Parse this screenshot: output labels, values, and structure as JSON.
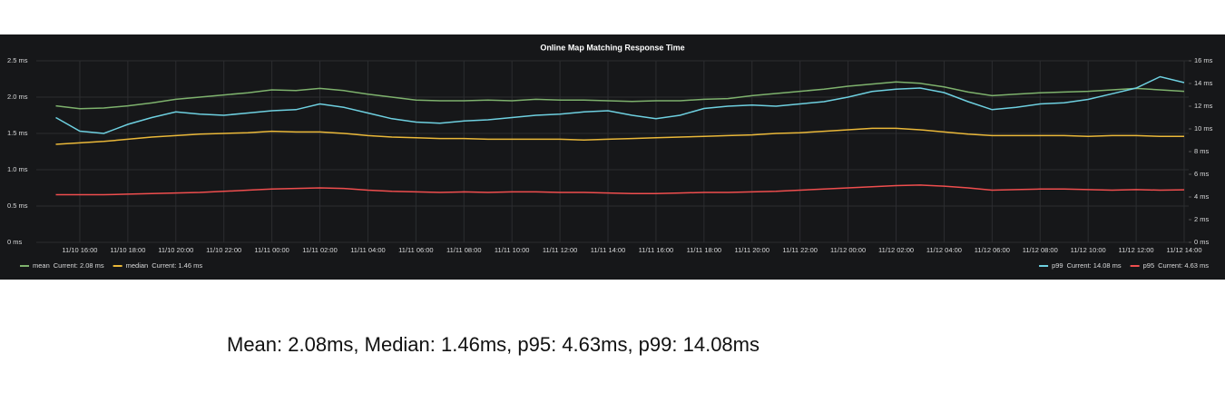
{
  "chart_data": {
    "type": "line",
    "title": "Online Map Matching Response Time",
    "caption": "Mean: 2.08ms, Median: 1.46ms, p95: 4.63ms, p99: 14.08ms",
    "categories": [
      null,
      "11/10 16:00",
      null,
      "11/10 18:00",
      null,
      "11/10 20:00",
      null,
      "11/10 22:00",
      null,
      "11/11 00:00",
      null,
      "11/11 02:00",
      null,
      "11/11 04:00",
      null,
      "11/11 06:00",
      null,
      "11/11 08:00",
      null,
      "11/11 10:00",
      null,
      "11/11 12:00",
      null,
      "11/11 14:00",
      null,
      "11/11 16:00",
      null,
      "11/11 18:00",
      null,
      "11/11 20:00",
      null,
      "11/11 22:00",
      null,
      "11/12 00:00",
      null,
      "11/12 02:00",
      null,
      "11/12 04:00",
      null,
      "11/12 06:00",
      null,
      "11/12 08:00",
      null,
      "11/12 10:00",
      null,
      "11/12 12:00",
      null,
      "11/12 14:00"
    ],
    "ylim": [
      0,
      2.5
    ],
    "yticks": [
      {
        "value": 0,
        "label": "0 ms"
      },
      {
        "value": 0.5,
        "label": "0.5 ms"
      },
      {
        "value": 1,
        "label": "1.0 ms"
      },
      {
        "value": 1.5,
        "label": "1.5 ms"
      },
      {
        "value": 2,
        "label": "2.0 ms"
      },
      {
        "value": 2.5,
        "label": "2.5 ms"
      }
    ],
    "y2lim": [
      0,
      16
    ],
    "y2ticks": [
      {
        "value": 0,
        "label": "0 ms"
      },
      {
        "value": 2,
        "label": "2 ms"
      },
      {
        "value": 4,
        "label": "4 ms"
      },
      {
        "value": 6,
        "label": "6 ms"
      },
      {
        "value": 8,
        "label": "8 ms"
      },
      {
        "value": 10,
        "label": "10 ms"
      },
      {
        "value": 12,
        "label": "12 ms"
      },
      {
        "value": 14,
        "label": "14 ms"
      },
      {
        "value": 16,
        "label": "16 ms"
      }
    ],
    "grid": true,
    "series": [
      {
        "name": "mean",
        "color": "#7eb26d",
        "current_label": "Current: 2.08 ms",
        "values": [
          1.88,
          1.84,
          1.85,
          1.88,
          1.92,
          1.97,
          2.0,
          2.03,
          2.06,
          2.1,
          2.09,
          2.12,
          2.09,
          2.04,
          2.0,
          1.96,
          1.95,
          1.95,
          1.96,
          1.95,
          1.97,
          1.96,
          1.96,
          1.95,
          1.94,
          1.95,
          1.95,
          1.97,
          1.98,
          2.02,
          2.05,
          2.08,
          2.11,
          2.15,
          2.18,
          2.21,
          2.19,
          2.14,
          2.07,
          2.02,
          2.04,
          2.06,
          2.07,
          2.08,
          2.1,
          2.12,
          2.1,
          2.08
        ]
      },
      {
        "name": "median",
        "color": "#eab839",
        "current_label": "Current: 1.46 ms",
        "values": [
          1.35,
          1.37,
          1.39,
          1.42,
          1.45,
          1.47,
          1.49,
          1.5,
          1.51,
          1.53,
          1.52,
          1.52,
          1.5,
          1.47,
          1.45,
          1.44,
          1.43,
          1.43,
          1.42,
          1.42,
          1.42,
          1.42,
          1.41,
          1.42,
          1.43,
          1.44,
          1.45,
          1.46,
          1.47,
          1.48,
          1.5,
          1.51,
          1.53,
          1.55,
          1.57,
          1.57,
          1.55,
          1.52,
          1.49,
          1.47,
          1.47,
          1.47,
          1.47,
          1.46,
          1.47,
          1.47,
          1.46,
          1.46
        ]
      },
      {
        "name": "p99",
        "color": "#6ed0e0",
        "axis": "y2",
        "current_label": "Current: 14.08 ms",
        "values": [
          11.0,
          9.8,
          9.6,
          10.4,
          11.0,
          11.5,
          11.3,
          11.2,
          11.4,
          11.6,
          11.7,
          12.2,
          11.9,
          11.4,
          10.9,
          10.6,
          10.5,
          10.7,
          10.8,
          11.0,
          11.2,
          11.3,
          11.5,
          11.6,
          11.2,
          10.9,
          11.2,
          11.8,
          12.0,
          12.1,
          12.0,
          12.2,
          12.4,
          12.8,
          13.3,
          13.5,
          13.6,
          13.2,
          12.4,
          11.7,
          11.9,
          12.2,
          12.3,
          12.6,
          13.1,
          13.6,
          14.6,
          14.08
        ]
      },
      {
        "name": "p95",
        "color": "#ef4e4e",
        "axis": "y2",
        "current_label": "Current: 4.63 ms",
        "values": [
          4.2,
          4.2,
          4.2,
          4.25,
          4.3,
          4.35,
          4.4,
          4.5,
          4.6,
          4.7,
          4.75,
          4.8,
          4.75,
          4.6,
          4.5,
          4.45,
          4.4,
          4.45,
          4.4,
          4.45,
          4.45,
          4.4,
          4.4,
          4.35,
          4.3,
          4.3,
          4.35,
          4.4,
          4.4,
          4.45,
          4.5,
          4.6,
          4.7,
          4.8,
          4.9,
          5.0,
          5.05,
          4.95,
          4.8,
          4.6,
          4.65,
          4.7,
          4.7,
          4.65,
          4.6,
          4.65,
          4.6,
          4.63
        ]
      }
    ]
  }
}
